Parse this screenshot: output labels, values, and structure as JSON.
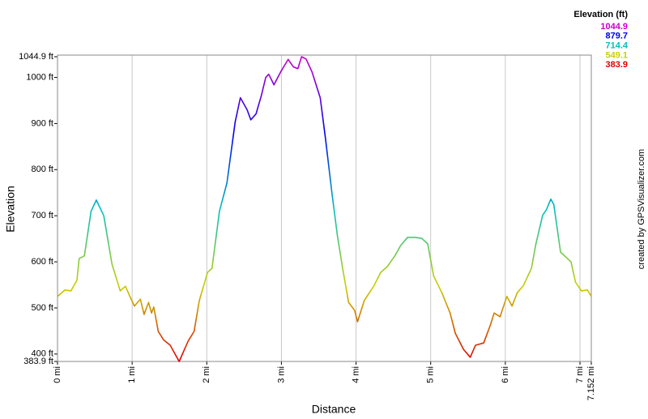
{
  "chart_data": {
    "type": "line",
    "x_label": "Distance",
    "y_label": "Elevation",
    "credit": "created by GPSVisualizer.com",
    "x": [
      0,
      0.1,
      0.18,
      0.26,
      0.29,
      0.36,
      0.45,
      0.52,
      0.62,
      0.73,
      0.84,
      0.91,
      0.97,
      1.03,
      1.11,
      1.16,
      1.22,
      1.26,
      1.29,
      1.35,
      1.42,
      1.51,
      1.63,
      1.75,
      1.83,
      1.9,
      2.01,
      2.07,
      2.17,
      2.27,
      2.38,
      2.45,
      2.54,
      2.59,
      2.66,
      2.73,
      2.79,
      2.83,
      2.9,
      2.99,
      3.09,
      3.16,
      3.22,
      3.27,
      3.33,
      3.41,
      3.52,
      3.59,
      3.68,
      3.75,
      3.82,
      3.9,
      3.98,
      4.02,
      4.11,
      4.24,
      4.33,
      4.42,
      4.52,
      4.6,
      4.69,
      4.79,
      4.88,
      4.96,
      5.04,
      5.15,
      5.26,
      5.33,
      5.44,
      5.53,
      5.6,
      5.71,
      5.8,
      5.85,
      5.93,
      6.02,
      6.09,
      6.16,
      6.24,
      6.35,
      6.41,
      6.5,
      6.55,
      6.61,
      6.65,
      6.74,
      6.88,
      6.94,
      7.02,
      7.1,
      7.152
    ],
    "values": [
      525,
      539,
      537,
      560,
      607,
      613,
      710,
      734,
      700,
      595,
      537,
      547,
      525,
      504,
      519,
      486,
      512,
      489,
      502,
      449,
      431,
      419,
      383.9,
      428,
      449,
      516,
      577,
      586,
      710,
      771,
      903,
      956,
      930,
      908,
      921,
      960,
      1000,
      1007,
      984,
      1012,
      1039,
      1023,
      1019,
      1044.9,
      1040,
      1012,
      956,
      868,
      745,
      657,
      586,
      512,
      495,
      470,
      516,
      548,
      577,
      590,
      613,
      636,
      653,
      653,
      651,
      639,
      569,
      533,
      489,
      445,
      410,
      393,
      419,
      424,
      463,
      489,
      481,
      525,
      504,
      533,
      548,
      586,
      639,
      701,
      713,
      736,
      724,
      621,
      600,
      556,
      537,
      539,
      525
    ],
    "xlim": [
      0,
      7.152
    ],
    "ylim": [
      383.9,
      1044.9
    ],
    "xticks": [
      {
        "value": 0,
        "label": "0 mi"
      },
      {
        "value": 1,
        "label": "1 mi"
      },
      {
        "value": 2,
        "label": "2 mi"
      },
      {
        "value": 3,
        "label": "3 mi"
      },
      {
        "value": 4,
        "label": "4 mi"
      },
      {
        "value": 5,
        "label": "5 mi"
      },
      {
        "value": 6,
        "label": "6 mi"
      },
      {
        "value": 7,
        "label": "7 mi"
      },
      {
        "value": 7.152,
        "label": "7.152 mi"
      }
    ],
    "yticks": [
      {
        "value": 383.9,
        "label": "383.9 ft"
      },
      {
        "value": 400,
        "label": "400 ft"
      },
      {
        "value": 500,
        "label": "500 ft"
      },
      {
        "value": 600,
        "label": "600 ft"
      },
      {
        "value": 700,
        "label": "700 ft"
      },
      {
        "value": 800,
        "label": "800 ft"
      },
      {
        "value": 900,
        "label": "900 ft"
      },
      {
        "value": 1000,
        "label": "1000 ft"
      },
      {
        "value": 1044.9,
        "label": "1044.9 ft"
      }
    ],
    "grid": "x",
    "color_scale": {
      "title": "Elevation (ft)",
      "stops": [
        {
          "value": 1044.9,
          "color": "#cc00cc"
        },
        {
          "value": 879.7,
          "color": "#0000ee"
        },
        {
          "value": 714.4,
          "color": "#00c0c0"
        },
        {
          "value": 549.1,
          "color": "#c8d000"
        },
        {
          "value": 383.9,
          "color": "#dd0000"
        }
      ]
    }
  }
}
